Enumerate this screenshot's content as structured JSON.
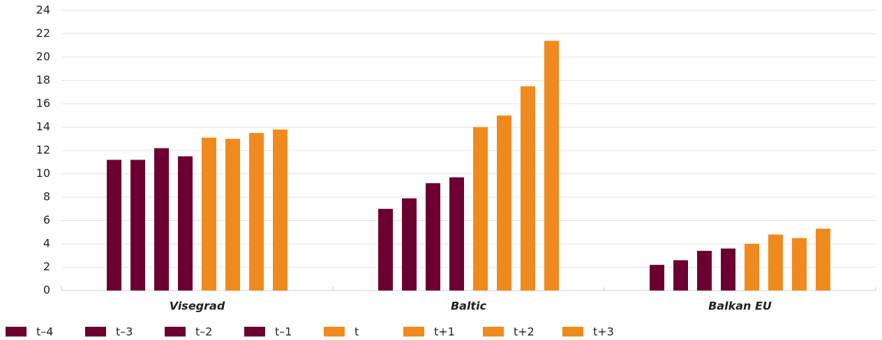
{
  "chart_data": {
    "type": "bar",
    "categories": [
      "Visegrad",
      "Baltic",
      "Balkan EU"
    ],
    "series": [
      {
        "name": "t–4",
        "color": "#6b0030",
        "values": [
          11.2,
          7.0,
          2.2
        ]
      },
      {
        "name": "t–3",
        "color": "#6b0030",
        "values": [
          11.2,
          7.9,
          2.6
        ]
      },
      {
        "name": "t–2",
        "color": "#6b0030",
        "values": [
          12.2,
          9.2,
          3.4
        ]
      },
      {
        "name": "t–1",
        "color": "#6b0030",
        "values": [
          11.5,
          9.7,
          3.6
        ]
      },
      {
        "name": "t",
        "color": "#f08a1e",
        "values": [
          13.1,
          14.0,
          4.0
        ]
      },
      {
        "name": "t+1",
        "color": "#f08a1e",
        "values": [
          13.0,
          15.0,
          4.8
        ]
      },
      {
        "name": "t+2",
        "color": "#f08a1e",
        "values": [
          13.5,
          17.5,
          4.5
        ]
      },
      {
        "name": "t+3",
        "color": "#f08a1e",
        "values": [
          13.8,
          21.4,
          5.3
        ]
      }
    ],
    "ylim": [
      0,
      24
    ],
    "yticks": [
      0,
      2,
      4,
      6,
      8,
      10,
      12,
      14,
      16,
      18,
      20,
      22,
      24
    ],
    "grid": true,
    "legend": "bottom"
  }
}
